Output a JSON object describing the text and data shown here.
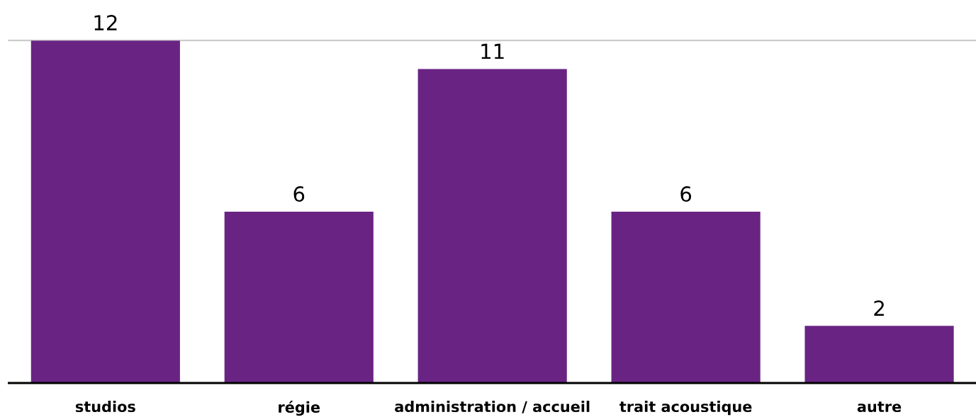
{
  "chart_data": {
    "type": "bar",
    "categories": [
      "studios",
      "régie",
      "administration / accueil",
      "trait acoustique",
      "autre"
    ],
    "values": [
      12,
      6,
      11,
      6,
      2
    ],
    "color": "#692483",
    "ylim": [
      0,
      12
    ],
    "ref_lines": [
      {
        "axis": "y",
        "value": 12,
        "color": "#cccccc"
      }
    ],
    "tick_labels": "x",
    "data_labels": true
  }
}
